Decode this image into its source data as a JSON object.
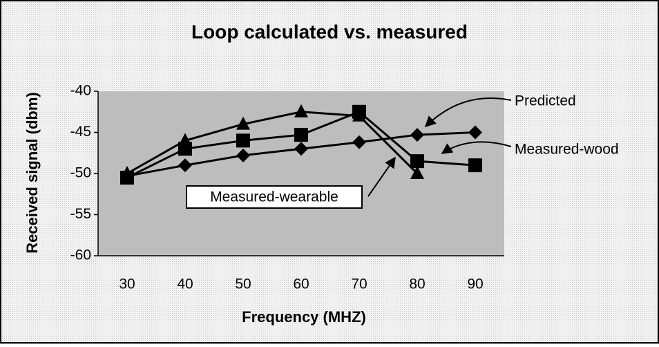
{
  "chart_data": {
    "type": "line",
    "title": "Loop calculated vs. measured",
    "x_label": "Frequency (MHZ)",
    "y_label": "Received signal (dbm)",
    "categories": [
      "30",
      "40",
      "50",
      "60",
      "70",
      "80",
      "90"
    ],
    "series": [
      {
        "name": "Predicted",
        "color": "#000000",
        "marker": "diamond",
        "values": [
          -50.3,
          -49,
          -47.8,
          -47,
          -46.2,
          -45.3,
          -45
        ]
      },
      {
        "name": "Measured-wood",
        "color": "#000000",
        "marker": "square",
        "values": [
          -50.5,
          -47,
          -46,
          -45.3,
          -42.5,
          -48.5,
          -49
        ]
      },
      {
        "name": "Measured-wearable",
        "color": "#000000",
        "marker": "triangle",
        "values": [
          -50,
          -46,
          -44,
          -42.5,
          -43,
          -50,
          null
        ]
      }
    ],
    "ylim": [
      -60,
      -40
    ],
    "yticks": [
      -60,
      -55,
      -50,
      -45,
      -40
    ],
    "grid": false
  }
}
